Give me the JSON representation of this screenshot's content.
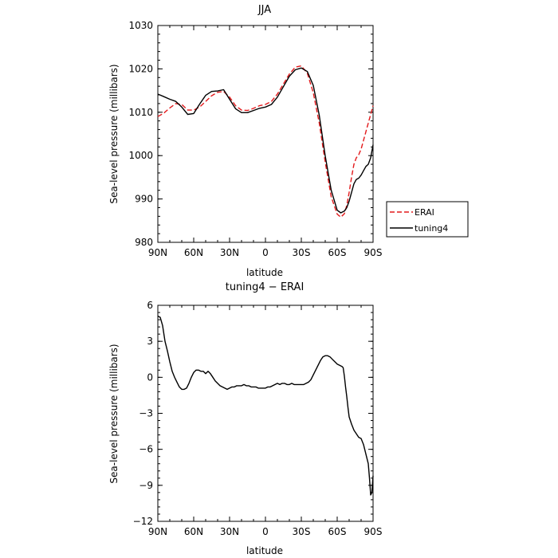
{
  "chart_data": [
    {
      "type": "line",
      "title": "JJA",
      "xlabel": "latitude",
      "ylabel": "Sea-level pressure (millibars)",
      "x_unit": "degrees latitude (north positive)",
      "xlim": [
        90,
        -90
      ],
      "ylim": [
        980,
        1030
      ],
      "xticks": [
        90,
        60,
        30,
        0,
        -30,
        -60,
        -90
      ],
      "xtick_labels": [
        "90N",
        "60N",
        "30N",
        "0",
        "30S",
        "60S",
        "90S"
      ],
      "yticks": [
        980,
        990,
        1000,
        1010,
        1020,
        1030
      ],
      "ytick_labels": [
        "980",
        "990",
        "1000",
        "1010",
        "1020",
        "1030"
      ],
      "grid": false,
      "legend_position": "right, outside plot at lower right",
      "series": [
        {
          "name": "ERAI",
          "color": "#e31a1c",
          "dash": "dashed",
          "x": [
            90,
            85,
            80,
            75,
            70,
            65,
            60,
            55,
            50,
            45,
            40,
            35,
            30,
            25,
            20,
            15,
            10,
            5,
            0,
            -5,
            -10,
            -15,
            -20,
            -25,
            -30,
            -35,
            -40,
            -45,
            -50,
            -55,
            -60,
            -63,
            -66,
            -68,
            -70,
            -72,
            -74,
            -76,
            -78,
            -80,
            -82,
            -84,
            -86,
            -88,
            -90
          ],
          "y": [
            1009.0,
            1009.8,
            1011.0,
            1012.0,
            1011.8,
            1010.5,
            1010.5,
            1011.2,
            1012.5,
            1013.8,
            1014.6,
            1014.8,
            1013.5,
            1011.5,
            1010.5,
            1010.4,
            1010.9,
            1011.5,
            1011.8,
            1012.5,
            1014.2,
            1016.5,
            1018.8,
            1020.4,
            1020.7,
            1019.0,
            1014.5,
            1007.5,
            998.5,
            990.5,
            986.5,
            985.8,
            986.6,
            988.5,
            991.5,
            995.0,
            998.0,
            999.5,
            1000.2,
            1001.5,
            1003.5,
            1005.5,
            1007.5,
            1009.5,
            1011.5
          ]
        },
        {
          "name": "tuning4",
          "color": "#000000",
          "dash": "solid",
          "x": [
            90,
            85,
            80,
            75,
            70,
            65,
            60,
            55,
            50,
            45,
            40,
            35,
            30,
            25,
            20,
            15,
            10,
            5,
            0,
            -5,
            -10,
            -15,
            -20,
            -25,
            -30,
            -35,
            -40,
            -45,
            -50,
            -55,
            -60,
            -63,
            -66,
            -68,
            -70,
            -72,
            -74,
            -76,
            -78,
            -80,
            -82,
            -84,
            -86,
            -88,
            -90
          ],
          "y": [
            1014.2,
            1013.6,
            1013.0,
            1012.5,
            1011.2,
            1009.5,
            1009.7,
            1011.9,
            1013.9,
            1014.8,
            1014.9,
            1015.2,
            1013.0,
            1010.8,
            1009.9,
            1009.9,
            1010.4,
            1010.9,
            1011.2,
            1011.8,
            1013.5,
            1015.9,
            1018.3,
            1019.8,
            1020.2,
            1019.4,
            1016.2,
            1009.3,
            999.9,
            992.0,
            987.4,
            986.8,
            987.2,
            988.0,
            989.5,
            991.5,
            993.5,
            994.5,
            994.8,
            995.5,
            996.5,
            997.5,
            998.0,
            999.5,
            1002.5
          ]
        }
      ]
    },
    {
      "type": "line",
      "title": "tuning4 − ERAI",
      "xlabel": "latitude",
      "ylabel": "Sea-level pressure (millibars)",
      "x_unit": "degrees latitude (north positive)",
      "xlim": [
        90,
        -90
      ],
      "ylim": [
        -12,
        6
      ],
      "xticks": [
        90,
        60,
        30,
        0,
        -30,
        -60,
        -90
      ],
      "xtick_labels": [
        "90N",
        "60N",
        "30N",
        "0",
        "30S",
        "60S",
        "90S"
      ],
      "yticks": [
        -12,
        -9,
        -6,
        -3,
        0,
        3,
        6
      ],
      "ytick_labels": [
        "−12",
        "−9",
        "−6",
        "−3",
        "0",
        "3",
        "6"
      ],
      "grid": false,
      "series": [
        {
          "color": "#000000",
          "dash": "solid",
          "x": [
            90,
            88,
            86,
            84,
            82,
            80,
            78,
            76,
            74,
            72,
            70,
            68,
            66,
            64,
            62,
            60,
            58,
            56,
            54,
            52,
            50,
            48,
            46,
            44,
            42,
            40,
            38,
            36,
            34,
            32,
            30,
            28,
            26,
            24,
            22,
            20,
            18,
            16,
            14,
            12,
            10,
            8,
            6,
            4,
            2,
            0,
            -2,
            -4,
            -6,
            -8,
            -10,
            -12,
            -14,
            -16,
            -18,
            -20,
            -22,
            -24,
            -26,
            -28,
            -30,
            -32,
            -34,
            -36,
            -38,
            -40,
            -42,
            -44,
            -46,
            -48,
            -50,
            -52,
            -54,
            -56,
            -58,
            -60,
            -62,
            -64,
            -65,
            -66,
            -67,
            -68,
            -69,
            -70,
            -72,
            -74,
            -76,
            -78,
            -80,
            -82,
            -84,
            -86,
            -87,
            -88,
            -89,
            -90
          ],
          "y": [
            5.1,
            5.0,
            4.3,
            3.0,
            2.2,
            1.3,
            0.5,
            0.0,
            -0.4,
            -0.8,
            -1.0,
            -1.0,
            -0.9,
            -0.5,
            0.0,
            0.4,
            0.6,
            0.6,
            0.5,
            0.5,
            0.3,
            0.5,
            0.3,
            0.0,
            -0.3,
            -0.5,
            -0.7,
            -0.8,
            -0.9,
            -1.0,
            -0.9,
            -0.8,
            -0.8,
            -0.7,
            -0.7,
            -0.7,
            -0.6,
            -0.7,
            -0.7,
            -0.8,
            -0.8,
            -0.8,
            -0.9,
            -0.9,
            -0.9,
            -0.9,
            -0.8,
            -0.8,
            -0.7,
            -0.6,
            -0.5,
            -0.6,
            -0.5,
            -0.5,
            -0.6,
            -0.6,
            -0.5,
            -0.6,
            -0.6,
            -0.6,
            -0.6,
            -0.6,
            -0.5,
            -0.4,
            -0.2,
            0.2,
            0.6,
            1.0,
            1.4,
            1.7,
            1.8,
            1.8,
            1.7,
            1.5,
            1.3,
            1.1,
            1.0,
            0.9,
            0.8,
            0.1,
            -0.8,
            -1.6,
            -2.5,
            -3.3,
            -3.9,
            -4.4,
            -4.7,
            -5.0,
            -5.1,
            -5.6,
            -6.4,
            -7.2,
            -8.4,
            -9.8,
            -9.6,
            -8.2
          ]
        }
      ]
    }
  ]
}
